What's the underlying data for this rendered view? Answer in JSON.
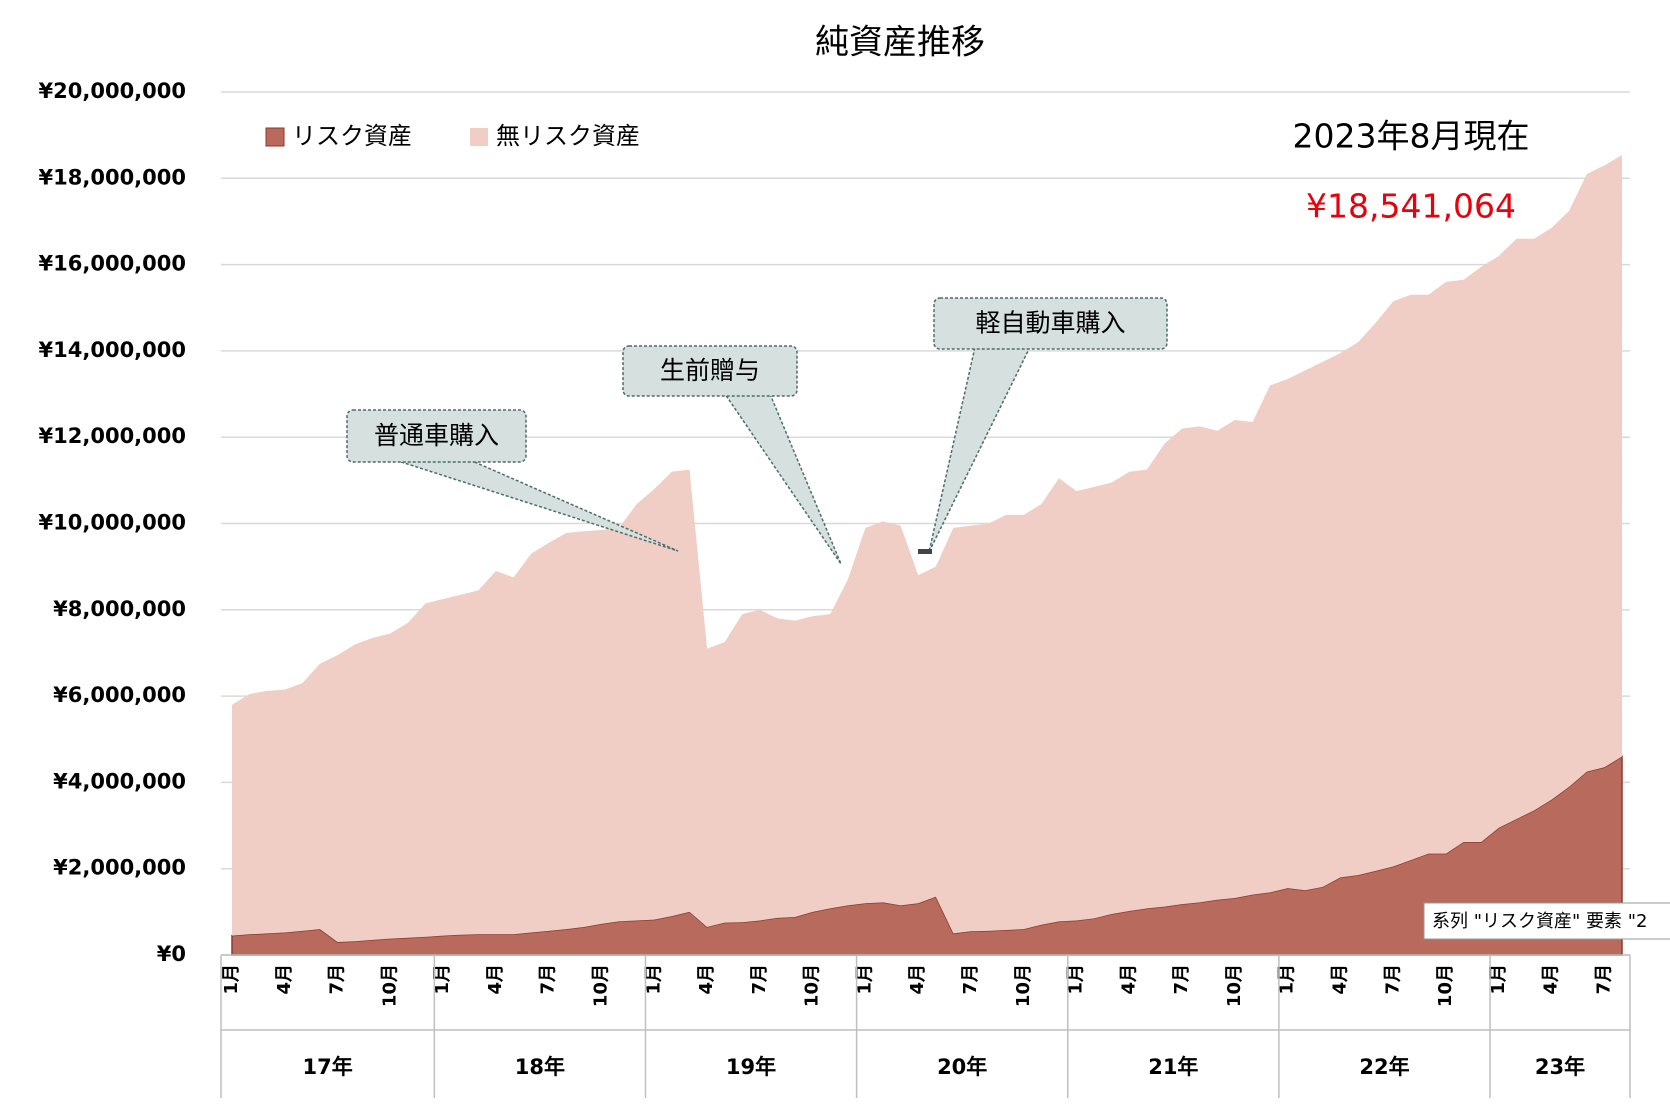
{
  "chart_data": {
    "type": "area",
    "stacked": true,
    "title": "純資産推移",
    "as_of": "2023年8月現在",
    "total_label": "¥18,541,064",
    "tooltip": "系列 \"リスク資産\" 要素 \"2",
    "categories": [
      "1月",
      null,
      null,
      "4月",
      null,
      null,
      "7月",
      null,
      null,
      "10月",
      null,
      null,
      "1月",
      null,
      null,
      "4月",
      null,
      null,
      "7月",
      null,
      null,
      "10月",
      null,
      null,
      "1月",
      null,
      null,
      "4月",
      null,
      null,
      "7月",
      null,
      null,
      "10月",
      null,
      null,
      "1月",
      null,
      null,
      "4月",
      null,
      null,
      "7月",
      null,
      null,
      "10月",
      null,
      null,
      "1月",
      null,
      null,
      "4月",
      null,
      null,
      "7月",
      null,
      null,
      "10月",
      null,
      null,
      "1月",
      null,
      null,
      "4月",
      null,
      null,
      "7月",
      null,
      null,
      "10月",
      null,
      null,
      "1月",
      null,
      null,
      "4月",
      null,
      null,
      "7月",
      null
    ],
    "year_groups": [
      "17年",
      "18年",
      "19年",
      "20年",
      "21年",
      "22年",
      "23年"
    ],
    "series": [
      {
        "name": "リスク資産",
        "color": "#b86b5c",
        "values": [
          450000,
          480000,
          500000,
          520000,
          560000,
          600000,
          300000,
          320000,
          350000,
          380000,
          400000,
          420000,
          450000,
          470000,
          480000,
          480000,
          480000,
          520000,
          560000,
          600000,
          650000,
          720000,
          780000,
          800000,
          820000,
          900000,
          1000000,
          650000,
          750000,
          760000,
          800000,
          860000,
          880000,
          1000000,
          1080000,
          1150000,
          1200000,
          1220000,
          1150000,
          1200000,
          1350000,
          500000,
          550000,
          560000,
          580000,
          600000,
          700000,
          780000,
          800000,
          850000,
          950000,
          1020000,
          1080000,
          1120000,
          1180000,
          1220000,
          1280000,
          1320000,
          1400000,
          1450000,
          1550000,
          1500000,
          1580000,
          1800000,
          1850000,
          1950000,
          2050000,
          2200000,
          2350000,
          2350000,
          2620000,
          2620000,
          2950000,
          3150000,
          3350000,
          3600000,
          3900000,
          4250000,
          4350000,
          4600000
        ]
      },
      {
        "name": "無リスク資産",
        "color": "#f0cdc5",
        "values": [
          5350000,
          5570000,
          5620000,
          5630000,
          5740000,
          6150000,
          6650000,
          6880000,
          7000000,
          7070000,
          7300000,
          7730000,
          7800000,
          7880000,
          7970000,
          8420000,
          8270000,
          8780000,
          8990000,
          9180000,
          9170000,
          9130000,
          9120000,
          9650000,
          9980000,
          10300000,
          10250000,
          6450000,
          6500000,
          7140000,
          7200000,
          6940000,
          6870000,
          6850000,
          6820000,
          7550000,
          8700000,
          8830000,
          8800000,
          7600000,
          7650000,
          9400000,
          9400000,
          9440000,
          9620000,
          9600000,
          9750000,
          10270000,
          9950000,
          10000000,
          10000000,
          10180000,
          10170000,
          10730000,
          11020000,
          11030000,
          10870000,
          11080000,
          10950000,
          11750000,
          11800000,
          12050000,
          12170000,
          12150000,
          12350000,
          12700000,
          13100000,
          13100000,
          12950000,
          13250000,
          13030000,
          13330000,
          13250000,
          13450000,
          13250000,
          13250000,
          13350000,
          13850000,
          13950000,
          13941064
        ]
      }
    ],
    "ylim": [
      0,
      20000000
    ],
    "yticks": [
      {
        "value": 0,
        "label": "¥0"
      },
      {
        "value": 2000000,
        "label": "¥2,000,000"
      },
      {
        "value": 4000000,
        "label": "¥4,000,000"
      },
      {
        "value": 6000000,
        "label": "¥6,000,000"
      },
      {
        "value": 8000000,
        "label": "¥8,000,000"
      },
      {
        "value": 10000000,
        "label": "¥10,000,000"
      },
      {
        "value": 12000000,
        "label": "¥12,000,000"
      },
      {
        "value": 14000000,
        "label": "¥14,000,000"
      },
      {
        "value": 16000000,
        "label": "¥16,000,000"
      },
      {
        "value": 18000000,
        "label": "¥18,000,000"
      },
      {
        "value": 20000000,
        "label": "¥20,000,000"
      }
    ],
    "grid": true,
    "legend": "top-left",
    "annotations": [
      {
        "text": "普通車購入"
      },
      {
        "text": "生前贈与"
      },
      {
        "text": "軽自動車購入"
      }
    ]
  }
}
